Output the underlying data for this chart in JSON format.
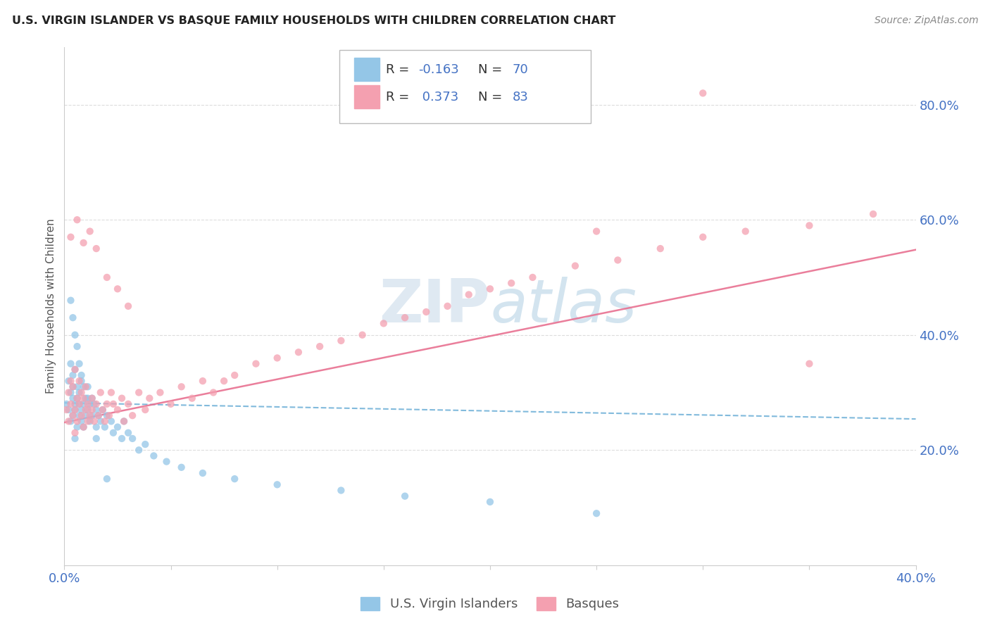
{
  "title": "U.S. VIRGIN ISLANDER VS BASQUE FAMILY HOUSEHOLDS WITH CHILDREN CORRELATION CHART",
  "source": "Source: ZipAtlas.com",
  "ylabel": "Family Households with Children",
  "xlim": [
    0.0,
    0.4
  ],
  "ylim": [
    0.0,
    0.9
  ],
  "xtick_positions": [
    0.0,
    0.05,
    0.1,
    0.15,
    0.2,
    0.25,
    0.3,
    0.35,
    0.4
  ],
  "xtick_labels": [
    "0.0%",
    "",
    "",
    "",
    "",
    "",
    "",
    "",
    "40.0%"
  ],
  "ytick_positions": [
    0.2,
    0.4,
    0.6,
    0.8
  ],
  "ytick_labels": [
    "20.0%",
    "40.0%",
    "60.0%",
    "80.0%"
  ],
  "blue_color": "#94C6E7",
  "pink_color": "#F4A0B0",
  "blue_line_color": "#6BAED6",
  "pink_line_color": "#E87090",
  "watermark_color": "#D0E4F0",
  "grid_color": "#DDDDDD",
  "spine_color": "#CCCCCC",
  "tick_color": "#4472C4",
  "label_color": "#555555",
  "title_color": "#222222",
  "source_color": "#888888",
  "legend1_label": "R = -0.163   N = 70",
  "legend2_label": "R =  0.373   N = 83",
  "legend_R1": "-0.163",
  "legend_N1": "70",
  "legend_R2": "0.373",
  "legend_N2": "83",
  "vi_x": [
    0.001,
    0.002,
    0.002,
    0.003,
    0.003,
    0.003,
    0.004,
    0.004,
    0.004,
    0.004,
    0.005,
    0.005,
    0.005,
    0.005,
    0.006,
    0.006,
    0.006,
    0.007,
    0.007,
    0.007,
    0.008,
    0.008,
    0.008,
    0.009,
    0.009,
    0.01,
    0.01,
    0.011,
    0.011,
    0.012,
    0.012,
    0.013,
    0.013,
    0.014,
    0.015,
    0.015,
    0.016,
    0.017,
    0.018,
    0.019,
    0.02,
    0.022,
    0.023,
    0.025,
    0.027,
    0.028,
    0.03,
    0.032,
    0.035,
    0.038,
    0.042,
    0.048,
    0.055,
    0.065,
    0.08,
    0.1,
    0.13,
    0.16,
    0.2,
    0.25,
    0.003,
    0.004,
    0.005,
    0.006,
    0.007,
    0.008,
    0.009,
    0.011,
    0.015,
    0.02
  ],
  "vi_y": [
    0.28,
    0.32,
    0.27,
    0.3,
    0.35,
    0.25,
    0.29,
    0.33,
    0.26,
    0.31,
    0.28,
    0.22,
    0.34,
    0.27,
    0.29,
    0.24,
    0.31,
    0.28,
    0.26,
    0.3,
    0.27,
    0.32,
    0.25,
    0.28,
    0.24,
    0.29,
    0.26,
    0.27,
    0.31,
    0.28,
    0.25,
    0.29,
    0.26,
    0.28,
    0.27,
    0.24,
    0.26,
    0.25,
    0.27,
    0.24,
    0.26,
    0.25,
    0.23,
    0.24,
    0.22,
    0.25,
    0.23,
    0.22,
    0.2,
    0.21,
    0.19,
    0.18,
    0.17,
    0.16,
    0.15,
    0.14,
    0.13,
    0.12,
    0.11,
    0.09,
    0.46,
    0.43,
    0.4,
    0.38,
    0.35,
    0.33,
    0.31,
    0.29,
    0.22,
    0.15
  ],
  "basque_x": [
    0.001,
    0.002,
    0.002,
    0.003,
    0.003,
    0.004,
    0.004,
    0.005,
    0.005,
    0.005,
    0.006,
    0.006,
    0.007,
    0.007,
    0.008,
    0.008,
    0.009,
    0.009,
    0.01,
    0.01,
    0.011,
    0.011,
    0.012,
    0.013,
    0.013,
    0.014,
    0.015,
    0.016,
    0.017,
    0.018,
    0.019,
    0.02,
    0.021,
    0.022,
    0.023,
    0.025,
    0.027,
    0.028,
    0.03,
    0.032,
    0.035,
    0.038,
    0.04,
    0.045,
    0.05,
    0.055,
    0.06,
    0.065,
    0.07,
    0.075,
    0.08,
    0.09,
    0.1,
    0.11,
    0.12,
    0.13,
    0.14,
    0.15,
    0.16,
    0.17,
    0.18,
    0.19,
    0.2,
    0.21,
    0.22,
    0.24,
    0.26,
    0.28,
    0.3,
    0.32,
    0.35,
    0.38,
    0.003,
    0.006,
    0.009,
    0.012,
    0.015,
    0.02,
    0.025,
    0.03,
    0.25,
    0.3,
    0.35
  ],
  "basque_y": [
    0.27,
    0.3,
    0.25,
    0.32,
    0.28,
    0.26,
    0.31,
    0.27,
    0.23,
    0.34,
    0.29,
    0.25,
    0.28,
    0.32,
    0.26,
    0.3,
    0.24,
    0.29,
    0.27,
    0.31,
    0.25,
    0.28,
    0.26,
    0.29,
    0.27,
    0.25,
    0.28,
    0.26,
    0.3,
    0.27,
    0.25,
    0.28,
    0.26,
    0.3,
    0.28,
    0.27,
    0.29,
    0.25,
    0.28,
    0.26,
    0.3,
    0.27,
    0.29,
    0.3,
    0.28,
    0.31,
    0.29,
    0.32,
    0.3,
    0.32,
    0.33,
    0.35,
    0.36,
    0.37,
    0.38,
    0.39,
    0.4,
    0.42,
    0.43,
    0.44,
    0.45,
    0.47,
    0.48,
    0.49,
    0.5,
    0.52,
    0.53,
    0.55,
    0.57,
    0.58,
    0.59,
    0.61,
    0.57,
    0.6,
    0.56,
    0.58,
    0.55,
    0.5,
    0.48,
    0.45,
    0.58,
    0.82,
    0.35
  ],
  "vi_trend": [
    0.282,
    0.254
  ],
  "basque_trend": [
    0.248,
    0.548
  ]
}
